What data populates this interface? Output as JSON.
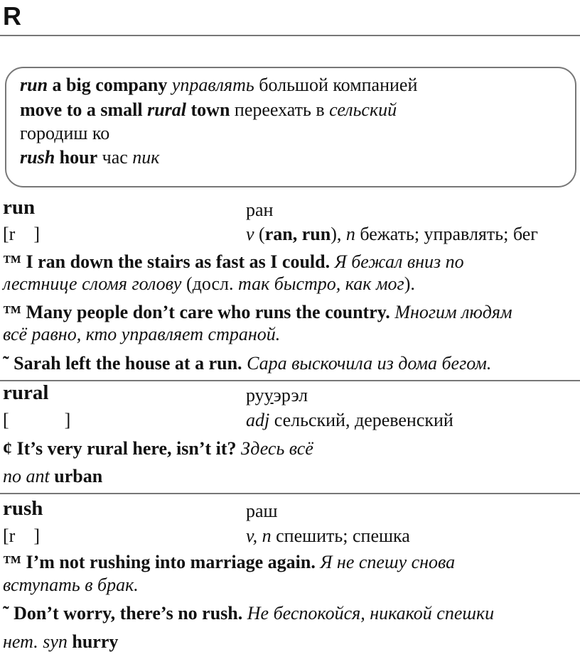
{
  "page_letter": "R",
  "box": {
    "lines": [
      [
        {
          "t": "run",
          "b": 1,
          "i": 1
        },
        {
          "t": " a big company ",
          "b": 1
        },
        {
          "t": "управлять",
          "i": 1
        },
        {
          "t": " большой компанией"
        }
      ],
      [
        {
          "t": "move to a small ",
          "b": 1
        },
        {
          "t": "rural",
          "b": 1,
          "i": 1
        },
        {
          "t": " town",
          "b": 1
        },
        {
          "t": " переехать в "
        },
        {
          "t": "сельский",
          "i": 1
        }
      ],
      [
        {
          "t": "городиш ко"
        }
      ],
      [
        {
          "t": "rush",
          "b": 1,
          "i": 1
        },
        {
          "t": " hour",
          "b": 1
        },
        {
          "t": " час "
        },
        {
          "t": "пик",
          "i": 1
        }
      ]
    ]
  },
  "entries": [
    {
      "headword": "run",
      "transcription": [
        {
          "t": "ран"
        }
      ],
      "ipa": "[r    ]",
      "definition": [
        {
          "t": "v",
          "i": 1
        },
        {
          "t": " ("
        },
        {
          "t": "ran, run",
          "b": 1
        },
        {
          "t": "), "
        },
        {
          "t": "n",
          "i": 1
        },
        {
          "t": " бежать; управлять; бег"
        }
      ],
      "examples": [
        [
          {
            "t": "™ I ran down the stairs as fast as I could. ",
            "b": 1
          },
          {
            "t": "Я бежал вниз по",
            "i": 1
          }
        ],
        [
          {
            "t": "лестнице сломя голову",
            "i": 1
          },
          {
            "t": " (досл. "
          },
          {
            "t": "так быстро, как мог",
            "i": 1
          },
          {
            "t": ")."
          }
        ],
        [
          {
            "t": "™ Many people don’t care who runs the country. ",
            "b": 1
          },
          {
            "t": "Многим людям",
            "i": 1
          }
        ],
        [
          {
            "t": "всё равно, кто управляет страной.",
            "i": 1
          }
        ],
        [
          {
            "t": "˜  Sarah left the house at a run. ",
            "b": 1
          },
          {
            "t": "Сара выскочила из дома бегом.",
            "i": 1
          }
        ]
      ]
    },
    {
      "headword": "rural",
      "transcription": [
        {
          "t": "ру"
        },
        {
          "t": "у",
          "u": 1
        },
        {
          "t": "эрэл"
        }
      ],
      "ipa": "[            ]",
      "definition": [
        {
          "t": "adj",
          "i": 1
        },
        {
          "t": " сельский, деревенский"
        }
      ],
      "examples": [
        [
          {
            "t": "¢  It’s very rural here, isn’t it? ",
            "b": 1
          },
          {
            "t": "Здесь всё",
            "i": 1
          }
        ],
        [
          {
            "t": "no ant",
            "i": 1
          },
          {
            "t": " urban",
            "b": 1
          }
        ]
      ]
    },
    {
      "headword": "rush",
      "transcription": [
        {
          "t": "раш"
        }
      ],
      "ipa": "[r    ]",
      "definition": [
        {
          "t": "v, n",
          "i": 1
        },
        {
          "t": " спешить; спешка"
        }
      ],
      "examples": [
        [
          {
            "t": "™ I’m not rushing into marriage again. ",
            "b": 1
          },
          {
            "t": "Я не спешу снова",
            "i": 1
          }
        ],
        [
          {
            "t": "вступать в брак.",
            "i": 1
          }
        ],
        [
          {
            "t": "˜  Don’t worry, there’s no rush. ",
            "b": 1
          },
          {
            "t": "Не беспокойся, никакой спешки",
            "i": 1
          }
        ],
        [
          {
            "t": "нет. ",
            "i": 1
          },
          {
            "t": "syn",
            "i": 1
          },
          {
            "t": " hurry",
            "b": 1
          }
        ]
      ]
    }
  ]
}
